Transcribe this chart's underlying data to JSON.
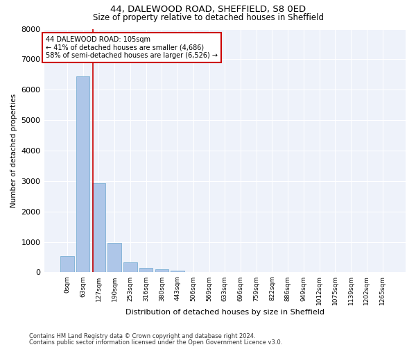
{
  "title_line1": "44, DALEWOOD ROAD, SHEFFIELD, S8 0ED",
  "title_line2": "Size of property relative to detached houses in Sheffield",
  "xlabel": "Distribution of detached houses by size in Sheffield",
  "ylabel": "Number of detached properties",
  "bar_labels": [
    "0sqm",
    "63sqm",
    "127sqm",
    "190sqm",
    "253sqm",
    "316sqm",
    "380sqm",
    "443sqm",
    "506sqm",
    "569sqm",
    "633sqm",
    "696sqm",
    "759sqm",
    "822sqm",
    "886sqm",
    "949sqm",
    "1012sqm",
    "1075sqm",
    "1139sqm",
    "1202sqm",
    "1265sqm"
  ],
  "bar_values": [
    540,
    6430,
    2930,
    970,
    330,
    155,
    100,
    65,
    0,
    0,
    0,
    0,
    0,
    0,
    0,
    0,
    0,
    0,
    0,
    0,
    0
  ],
  "bar_color": "#aec6e8",
  "bar_edge_color": "#7bafd4",
  "vline_x": 1.62,
  "annotation_text": "44 DALEWOOD ROAD: 105sqm\n← 41% of detached houses are smaller (4,686)\n58% of semi-detached houses are larger (6,526) →",
  "annotation_box_color": "#ffffff",
  "annotation_box_edge_color": "#cc0000",
  "vline_color": "#cc0000",
  "background_color": "#eef2fa",
  "grid_color": "#ffffff",
  "ylim": [
    0,
    8000
  ],
  "yticks": [
    0,
    1000,
    2000,
    3000,
    4000,
    5000,
    6000,
    7000,
    8000
  ],
  "footnote_line1": "Contains HM Land Registry data © Crown copyright and database right 2024.",
  "footnote_line2": "Contains public sector information licensed under the Open Government Licence v3.0."
}
